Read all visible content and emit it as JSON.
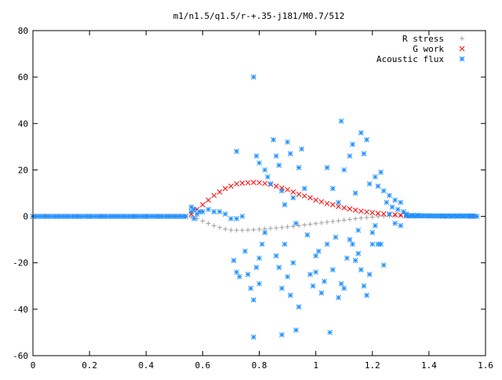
{
  "chart_data": {
    "type": "scatter",
    "title": "m1/n1.5/q1.5/r-+.35-j181/M0.7/512",
    "xlabel": "",
    "ylabel": "",
    "xlim": [
      0,
      1.6
    ],
    "ylim": [
      -60,
      80
    ],
    "x_ticks": [
      "0",
      "0.2",
      "0.4",
      "0.6",
      "0.8",
      "1",
      "1.2",
      "1.4",
      "1.6"
    ],
    "y_ticks": [
      "-60",
      "-40",
      "-20",
      "0",
      "20",
      "40",
      "60",
      "80"
    ],
    "grid": false,
    "legend_position": "top-right",
    "series": [
      {
        "name": "R stress",
        "marker": "plus",
        "color": "#a0a0a0",
        "points": [
          [
            0.0,
            0
          ],
          [
            0.05,
            0
          ],
          [
            0.1,
            0
          ],
          [
            0.15,
            0
          ],
          [
            0.2,
            0
          ],
          [
            0.25,
            0
          ],
          [
            0.3,
            0
          ],
          [
            0.35,
            0
          ],
          [
            0.4,
            0
          ],
          [
            0.45,
            0
          ],
          [
            0.5,
            0
          ],
          [
            0.54,
            0
          ],
          [
            0.56,
            -0.3
          ],
          [
            0.58,
            -1.0
          ],
          [
            0.6,
            -2.0
          ],
          [
            0.62,
            -3.0
          ],
          [
            0.64,
            -4.0
          ],
          [
            0.66,
            -4.8
          ],
          [
            0.68,
            -5.5
          ],
          [
            0.7,
            -5.9
          ],
          [
            0.72,
            -6.0
          ],
          [
            0.74,
            -6.0
          ],
          [
            0.76,
            -5.9
          ],
          [
            0.78,
            -5.8
          ],
          [
            0.8,
            -5.6
          ],
          [
            0.82,
            -5.4
          ],
          [
            0.84,
            -5.2
          ],
          [
            0.86,
            -5.0
          ],
          [
            0.88,
            -4.8
          ],
          [
            0.9,
            -4.5
          ],
          [
            0.92,
            -4.3
          ],
          [
            0.94,
            -4.0
          ],
          [
            0.96,
            -3.7
          ],
          [
            0.98,
            -3.4
          ],
          [
            1.0,
            -3.1
          ],
          [
            1.02,
            -2.8
          ],
          [
            1.04,
            -2.5
          ],
          [
            1.06,
            -2.2
          ],
          [
            1.08,
            -1.9
          ],
          [
            1.1,
            -1.6
          ],
          [
            1.12,
            -1.3
          ],
          [
            1.14,
            -1.0
          ],
          [
            1.16,
            -0.7
          ],
          [
            1.18,
            -0.5
          ],
          [
            1.2,
            -0.3
          ],
          [
            1.22,
            -0.1
          ],
          [
            1.24,
            0.1
          ],
          [
            1.26,
            0.2
          ],
          [
            1.28,
            0.3
          ],
          [
            1.3,
            0.4
          ],
          [
            1.32,
            0.4
          ],
          [
            1.36,
            0.4
          ],
          [
            1.4,
            0.3
          ],
          [
            1.45,
            0.3
          ],
          [
            1.5,
            0.2
          ],
          [
            1.55,
            0.1
          ]
        ]
      },
      {
        "name": "G work",
        "marker": "cross",
        "color": "#ff0000",
        "points": [
          [
            0.0,
            0
          ],
          [
            0.05,
            0
          ],
          [
            0.1,
            0
          ],
          [
            0.15,
            0
          ],
          [
            0.2,
            0
          ],
          [
            0.25,
            0
          ],
          [
            0.3,
            0
          ],
          [
            0.35,
            0
          ],
          [
            0.4,
            0
          ],
          [
            0.45,
            0
          ],
          [
            0.5,
            0
          ],
          [
            0.54,
            0
          ],
          [
            0.56,
            1.0
          ],
          [
            0.58,
            3.0
          ],
          [
            0.6,
            5.0
          ],
          [
            0.62,
            7.0
          ],
          [
            0.64,
            9.0
          ],
          [
            0.66,
            10.5
          ],
          [
            0.68,
            12.0
          ],
          [
            0.7,
            13.0
          ],
          [
            0.72,
            14.0
          ],
          [
            0.74,
            14.3
          ],
          [
            0.76,
            14.5
          ],
          [
            0.78,
            14.6
          ],
          [
            0.8,
            14.5
          ],
          [
            0.82,
            14.2
          ],
          [
            0.84,
            13.8
          ],
          [
            0.86,
            13.0
          ],
          [
            0.88,
            12.2
          ],
          [
            0.9,
            11.5
          ],
          [
            0.92,
            10.5
          ],
          [
            0.94,
            9.5
          ],
          [
            0.96,
            8.8
          ],
          [
            0.98,
            8.0
          ],
          [
            1.0,
            7.0
          ],
          [
            1.02,
            6.3
          ],
          [
            1.04,
            5.5
          ],
          [
            1.06,
            5.0
          ],
          [
            1.08,
            4.3
          ],
          [
            1.1,
            3.7
          ],
          [
            1.12,
            3.2
          ],
          [
            1.14,
            2.7
          ],
          [
            1.16,
            2.2
          ],
          [
            1.18,
            1.9
          ],
          [
            1.2,
            1.6
          ],
          [
            1.22,
            1.3
          ],
          [
            1.24,
            1.1
          ],
          [
            1.26,
            0.9
          ],
          [
            1.28,
            0.7
          ],
          [
            1.3,
            0.5
          ],
          [
            1.32,
            0.4
          ],
          [
            1.36,
            0.3
          ],
          [
            1.4,
            0.2
          ],
          [
            1.45,
            0.1
          ],
          [
            1.5,
            0.1
          ],
          [
            1.55,
            0.0
          ]
        ]
      },
      {
        "name": "Acoustic flux",
        "marker": "star",
        "color": "#1e90ff",
        "points": [
          [
            0.0,
            0
          ],
          [
            0.04,
            0
          ],
          [
            0.08,
            0
          ],
          [
            0.12,
            0
          ],
          [
            0.16,
            0
          ],
          [
            0.2,
            0
          ],
          [
            0.24,
            0
          ],
          [
            0.28,
            0
          ],
          [
            0.32,
            0
          ],
          [
            0.36,
            0
          ],
          [
            0.4,
            0
          ],
          [
            0.44,
            0
          ],
          [
            0.48,
            0
          ],
          [
            0.52,
            0
          ],
          [
            0.56,
            2
          ],
          [
            0.56,
            4
          ],
          [
            0.57,
            -1
          ],
          [
            0.57,
            3
          ],
          [
            0.58,
            1
          ],
          [
            0.59,
            2
          ],
          [
            0.6,
            2
          ],
          [
            0.62,
            3
          ],
          [
            0.64,
            2
          ],
          [
            0.66,
            2
          ],
          [
            0.68,
            1
          ],
          [
            0.7,
            -1
          ],
          [
            0.72,
            -1
          ],
          [
            0.74,
            0
          ],
          [
            0.78,
            60
          ],
          [
            0.72,
            28
          ],
          [
            0.71,
            -19
          ],
          [
            0.72,
            -24
          ],
          [
            0.73,
            -26
          ],
          [
            0.75,
            -15
          ],
          [
            0.76,
            -25
          ],
          [
            0.77,
            -31
          ],
          [
            0.78,
            -36
          ],
          [
            0.79,
            -22
          ],
          [
            0.8,
            -18
          ],
          [
            0.8,
            -29
          ],
          [
            0.81,
            -12
          ],
          [
            0.82,
            -7
          ],
          [
            0.78,
            -52
          ],
          [
            0.79,
            26
          ],
          [
            0.8,
            23
          ],
          [
            0.82,
            20
          ],
          [
            0.83,
            17
          ],
          [
            0.84,
            14
          ],
          [
            0.85,
            33
          ],
          [
            0.86,
            26
          ],
          [
            0.87,
            22
          ],
          [
            0.88,
            11
          ],
          [
            0.89,
            5
          ],
          [
            0.9,
            32
          ],
          [
            0.91,
            27
          ],
          [
            0.92,
            8
          ],
          [
            0.93,
            -3
          ],
          [
            0.86,
            -17
          ],
          [
            0.87,
            -22
          ],
          [
            0.88,
            -31
          ],
          [
            0.89,
            -12
          ],
          [
            0.9,
            -26
          ],
          [
            0.91,
            -34
          ],
          [
            0.92,
            -20
          ],
          [
            0.93,
            -49
          ],
          [
            0.94,
            -39
          ],
          [
            0.88,
            -51
          ],
          [
            0.94,
            21
          ],
          [
            0.95,
            29
          ],
          [
            0.96,
            12
          ],
          [
            0.97,
            -8
          ],
          [
            0.98,
            -25
          ],
          [
            0.99,
            -30
          ],
          [
            1.0,
            -17
          ],
          [
            1.01,
            -15
          ],
          [
            1.02,
            -33
          ],
          [
            1.03,
            -28
          ],
          [
            1.04,
            -12
          ],
          [
            1.05,
            -50
          ],
          [
            1.06,
            -23
          ],
          [
            1.07,
            -9
          ],
          [
            1.08,
            -35
          ],
          [
            1.09,
            -29
          ],
          [
            1.1,
            -31
          ],
          [
            1.0,
            -24
          ],
          [
            1.04,
            21
          ],
          [
            1.06,
            12
          ],
          [
            1.08,
            6
          ],
          [
            1.09,
            41
          ],
          [
            1.1,
            20
          ],
          [
            1.12,
            26
          ],
          [
            1.13,
            31
          ],
          [
            1.14,
            10
          ],
          [
            1.15,
            -6
          ],
          [
            1.16,
            36
          ],
          [
            1.17,
            27
          ],
          [
            1.18,
            33
          ],
          [
            1.19,
            14
          ],
          [
            1.2,
            -7
          ],
          [
            1.11,
            -18
          ],
          [
            1.12,
            -10
          ],
          [
            1.13,
            -12
          ],
          [
            1.14,
            -19
          ],
          [
            1.15,
            -16
          ],
          [
            1.16,
            -23
          ],
          [
            1.17,
            -30
          ],
          [
            1.18,
            -34
          ],
          [
            1.19,
            -25
          ],
          [
            1.2,
            -12
          ],
          [
            1.21,
            -4
          ],
          [
            1.22,
            -12
          ],
          [
            1.23,
            -12
          ],
          [
            1.24,
            -21
          ],
          [
            1.21,
            17
          ],
          [
            1.22,
            13
          ],
          [
            1.23,
            19
          ],
          [
            1.24,
            11
          ],
          [
            1.25,
            6
          ],
          [
            1.26,
            9
          ],
          [
            1.27,
            4
          ],
          [
            1.28,
            7
          ],
          [
            1.29,
            3
          ],
          [
            1.3,
            6
          ],
          [
            1.31,
            2
          ],
          [
            1.26,
            1
          ],
          [
            1.28,
            -3
          ],
          [
            1.3,
            -4
          ],
          [
            1.32,
            1
          ],
          [
            1.34,
            0.5
          ],
          [
            1.36,
            0.5
          ],
          [
            1.38,
            0.3
          ],
          [
            1.4,
            0.2
          ],
          [
            1.42,
            0.1
          ],
          [
            1.44,
            0.1
          ],
          [
            1.46,
            0
          ],
          [
            1.48,
            0
          ],
          [
            1.5,
            0
          ],
          [
            1.52,
            0
          ],
          [
            1.54,
            0
          ],
          [
            1.56,
            0
          ],
          [
            1.57,
            0
          ]
        ]
      }
    ]
  }
}
